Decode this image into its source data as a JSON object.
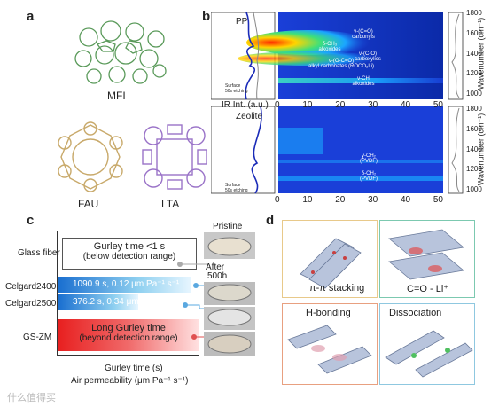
{
  "panel_labels": {
    "a": "a",
    "b": "b",
    "c": "c",
    "d": "d"
  },
  "panel_a": {
    "structures": [
      {
        "name": "MFI",
        "color": "#5a9a5a"
      },
      {
        "name": "FAU",
        "color": "#c8a96a"
      },
      {
        "name": "LTA",
        "color": "#9a73c8"
      }
    ]
  },
  "panel_b": {
    "ylabel": "Wavenumber (cm⁻¹)",
    "xlabel": "IR Int. (a.u.)",
    "top": {
      "label": "PP",
      "legend": [
        "Surface",
        "50s etching"
      ],
      "annotations": [
        {
          "text": "ν-(C=O)",
          "sub": "carbonyls"
        },
        {
          "text": "δ-CH₃",
          "sub": "alkoxides"
        },
        {
          "text": "ν-(C-O)",
          "sub": "carboxylics"
        },
        {
          "text": "ν-(O-C=O)",
          "sub": "alkyl carbonates (ROCO₂Li)"
        },
        {
          "text": "ν-CH",
          "sub": "alkoxides"
        }
      ]
    },
    "bottom": {
      "label": "Zeolite",
      "legend": [
        "Surface",
        "50s etching"
      ],
      "annotations": [
        {
          "text": "γ-CH₂",
          "sub": "(PVDF)"
        },
        {
          "text": "δ-CH₂",
          "sub": "(PVDF)"
        }
      ]
    },
    "x_ticks": [
      "0",
      "10",
      "20",
      "30",
      "40",
      "50"
    ],
    "y_ticks": [
      "1800",
      "1600",
      "1400",
      "1200",
      "1000"
    ]
  },
  "panel_c": {
    "rows": [
      {
        "label": "Glass fiber",
        "box": "Gurley time <1 s",
        "sub": "(below detection range)"
      },
      {
        "label": "Celgard2400",
        "value": "1090.9 s, 0.12 μm Pa⁻¹ s⁻¹"
      },
      {
        "label": "Celgard2500",
        "value": "376.2 s, 0.34 μm Pa⁻¹ s⁻¹"
      },
      {
        "label": "GS-ZM",
        "box": "Long Gurley time",
        "sub": "(beyond detection range)"
      }
    ],
    "xlabel": "Gurley time (s)",
    "xlabel2": "Air permeability (μm Pa⁻¹ s⁻¹)",
    "photo_labels": [
      "Pristine",
      "After",
      "500h"
    ]
  },
  "panel_d": {
    "boxes": [
      {
        "title": "π-π stacking",
        "color": "#e8c98a"
      },
      {
        "title": "C=O - Li⁺",
        "color": "#7cc9b0"
      },
      {
        "title": "H-bonding",
        "color": "#e8a080"
      },
      {
        "title": "Dissociation",
        "color": "#8fc8e0"
      }
    ]
  },
  "watermark": "什么值得买"
}
